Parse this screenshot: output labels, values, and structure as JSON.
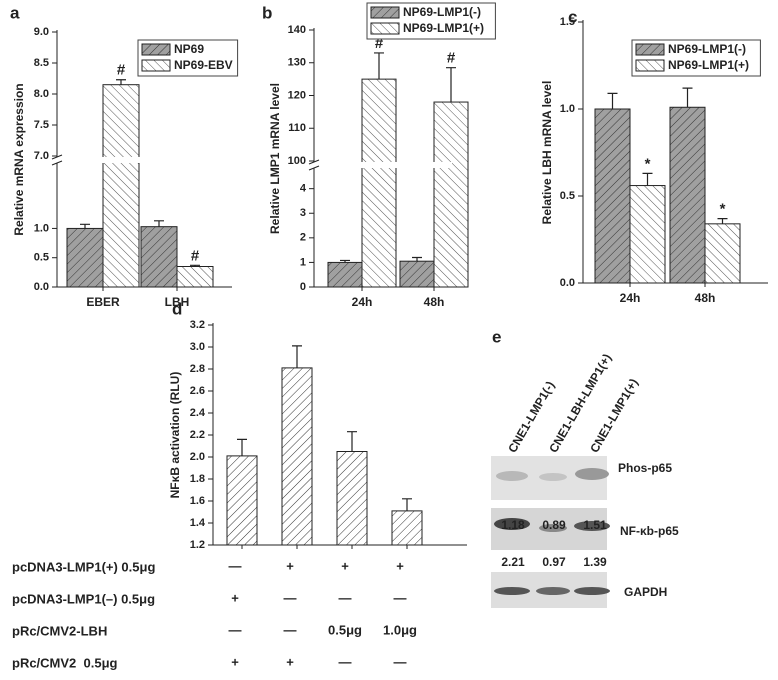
{
  "chart_data": [
    {
      "type": "bar",
      "panel": "a",
      "ylabel": "Relative mRNA expression",
      "categories": [
        "EBER",
        "LBH"
      ],
      "series": [
        {
          "name": "NP69",
          "color": "#a0a0a0",
          "values": [
            1.0,
            1.03
          ],
          "errors": [
            0.07,
            0.1
          ]
        },
        {
          "name": "NP69-EBV",
          "color": "#ffffff",
          "values": [
            8.15,
            0.35
          ],
          "errors": [
            0.08,
            0.02
          ],
          "markers": [
            "#",
            "#"
          ]
        }
      ],
      "ylim": [
        0,
        9
      ],
      "ybreak": [
        2.1,
        7
      ],
      "yticks": [
        {
          "value": 0,
          "label": "0.0"
        },
        {
          "value": 0.5,
          "label": "0.5"
        },
        {
          "value": 1,
          "label": "1.0"
        },
        {
          "value": 7,
          "label": "7.0"
        },
        {
          "value": 7.5,
          "label": "7.5"
        },
        {
          "value": 8,
          "label": "8.0"
        },
        {
          "value": 8.5,
          "label": "8.5"
        },
        {
          "value": 9,
          "label": "9.0"
        }
      ]
    },
    {
      "type": "bar",
      "panel": "b",
      "ylabel": "Relative LMP1 mRNA level",
      "categories": [
        "24h",
        "48h"
      ],
      "series": [
        {
          "name": "NP69-LMP1(-)",
          "color": "#a0a0a0",
          "values": [
            1.0,
            1.05
          ],
          "errors": [
            0.08,
            0.15
          ]
        },
        {
          "name": "NP69-LMP1(+)",
          "color": "#ffffff",
          "values": [
            125,
            118
          ],
          "errors": [
            8,
            10.5
          ],
          "markers": [
            "#",
            "#"
          ]
        }
      ],
      "ylim": [
        0,
        140
      ],
      "ybreak": [
        4.8,
        100
      ],
      "yticks": [
        0,
        1,
        2,
        3,
        4,
        100,
        110,
        120,
        130,
        140
      ]
    },
    {
      "type": "bar",
      "panel": "c",
      "ylabel": "Relative LBH mRNA level",
      "categories": [
        "24h",
        "48h"
      ],
      "series": [
        {
          "name": "NP69-LMP1(-)",
          "color": "#a0a0a0",
          "values": [
            1.0,
            1.01
          ],
          "errors": [
            0.09,
            0.11
          ]
        },
        {
          "name": "NP69-LMP1(+)",
          "color": "#ffffff",
          "values": [
            0.56,
            0.34
          ],
          "errors": [
            0.07,
            0.03
          ],
          "markers": [
            "*",
            "*"
          ]
        }
      ],
      "ylim": [
        0,
        1.5
      ],
      "yticks": [
        {
          "value": 0,
          "label": "0.0"
        },
        {
          "value": 0.5,
          "label": "0.5"
        },
        {
          "value": 1,
          "label": "1.0"
        },
        {
          "value": 1.5,
          "label": "1.5"
        }
      ]
    },
    {
      "type": "bar",
      "panel": "d",
      "ylabel": "NFκB activation (RLU)",
      "categories": [
        null,
        null,
        null,
        null
      ],
      "series": [
        {
          "color": "#ffffff",
          "values": [
            2.01,
            2.81,
            2.05,
            1.51
          ],
          "errors": [
            0.15,
            0.2,
            0.18,
            0.11
          ]
        }
      ],
      "ylim": [
        1.2,
        3.2
      ],
      "yticks": [
        1.2,
        1.4,
        1.6,
        1.8,
        {
          "value": 2,
          "label": "2.0"
        },
        2.2,
        2.4,
        2.6,
        2.8,
        {
          "value": 3,
          "label": "3.0"
        },
        3.2
      ],
      "conditions": [
        {
          "label": "pcDNA3-LMP1(+) 0.5μg",
          "cells": [
            "—",
            "+",
            "+",
            "+"
          ]
        },
        {
          "label": "pcDNA3-LMP1(–) 0.5μg",
          "cells": [
            "+",
            "—",
            "—",
            "—"
          ]
        },
        {
          "label": "pRc/CMV2-LBH",
          "cells": [
            "—",
            "—",
            "0.5μg",
            "1.0μg"
          ]
        },
        {
          "label": "pRc/CMV2  0.5μg",
          "cells": [
            "+",
            "+",
            "—",
            "—"
          ]
        }
      ]
    }
  ],
  "blot": {
    "panel": "e",
    "lanes": [
      "CNE1-LMP1(-)",
      "CNE1-LBH-LMP1(+)",
      "CNE1-LMP1(+)"
    ],
    "rows": [
      {
        "label": "Phos-p65",
        "values": [
          1.18,
          0.89,
          1.51
        ]
      },
      {
        "label": "NF-κb-p65",
        "values": [
          2.21,
          0.97,
          1.39
        ]
      },
      {
        "label": "GAPDH"
      }
    ]
  }
}
